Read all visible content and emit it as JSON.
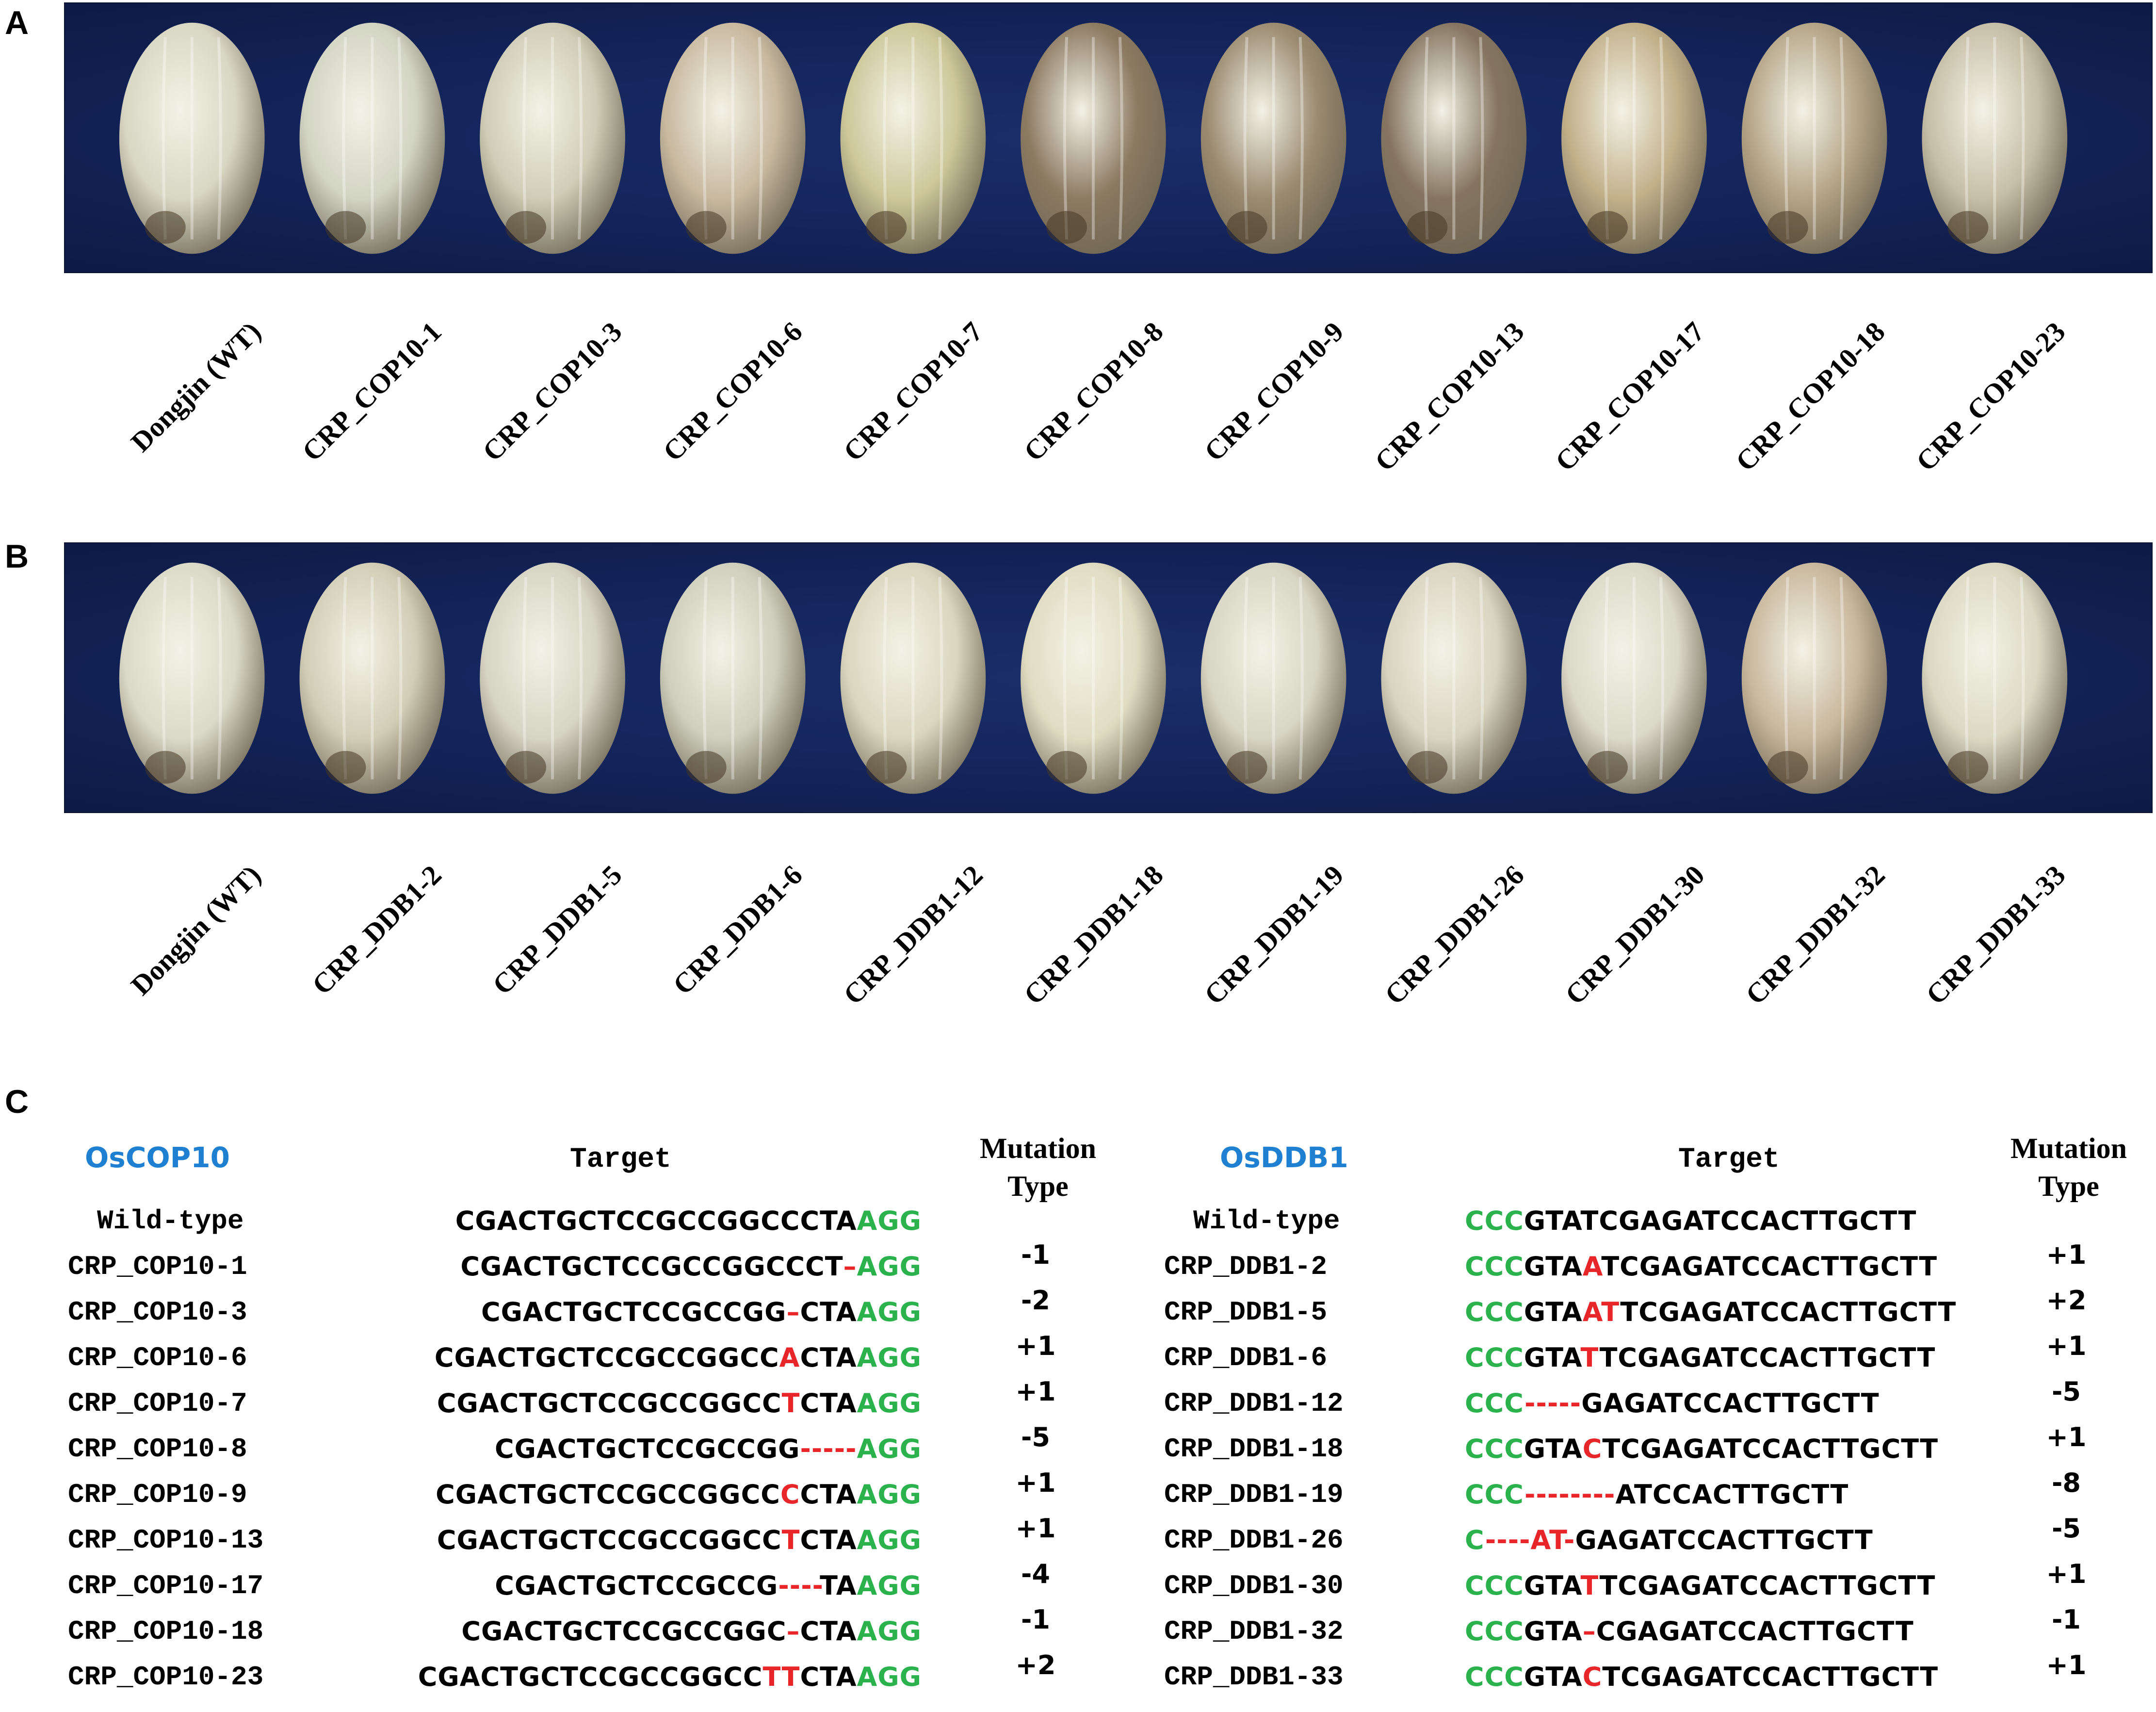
{
  "panels": {
    "a": "A",
    "b": "B",
    "c": "C"
  },
  "panel_a_labels": [
    "Dongjin (WT)",
    "CRP_COP10-1",
    "CRP_COP10-3",
    "CRP_COP10-6",
    "CRP_COP10-7",
    "CRP_COP10-8",
    "CRP_COP10-9",
    "CRP_COP10-13",
    "CRP_COP10-17",
    "CRP_COP10-18",
    "CRP_COP10-23"
  ],
  "panel_b_labels": [
    "Dongjin (WT)",
    "CRP_DDB1-2",
    "CRP_DDB1-5",
    "CRP_DDB1-6",
    "CRP_DDB1-12",
    "CRP_DDB1-18",
    "CRP_DDB1-19",
    "CRP_DDB1-26",
    "CRP_DDB1-30",
    "CRP_DDB1-32",
    "CRP_DDB1-33"
  ],
  "seed_colors": {
    "a": [
      "#d8d7c4",
      "#d2d4c4",
      "#cfcdb6",
      "#c8b9a0",
      "#cdc79a",
      "#8c7a62",
      "#9a8a70",
      "#857560",
      "#c2b08a",
      "#b4a486",
      "#c6bea6"
    ],
    "b": [
      "#dbdac8",
      "#d2cdb6",
      "#d6d4c4",
      "#cfcfbd",
      "#dad6be",
      "#e0dcc2",
      "#d7d5c3",
      "#d8d4c0",
      "#dbd9c9",
      "#c8b79c",
      "#dbd8c2"
    ]
  },
  "cop10": {
    "gene": "OsCOP10",
    "target_header": "Target",
    "mutation_header": [
      "Mutation",
      "Type"
    ],
    "rows": [
      {
        "name": "Wild-type",
        "seq": [
          [
            "CGACTGCTCCGCCGGCCCTA",
            "k"
          ],
          [
            "AGG",
            "g"
          ]
        ]
      },
      {
        "name": "CRP_COP10-1",
        "seq": [
          [
            "CGACTGCTCCGCCGGCCCT",
            "k"
          ],
          [
            "–",
            "r"
          ],
          [
            "AGG",
            "g"
          ]
        ]
      },
      {
        "name": "CRP_COP10-3",
        "seq": [
          [
            "CGACTGCTCCGCCGG",
            "k"
          ],
          [
            "–",
            "r"
          ],
          [
            "CTA",
            "k"
          ],
          [
            "AGG",
            "g"
          ]
        ]
      },
      {
        "name": "CRP_COP10-6",
        "seq": [
          [
            "CGACTGCTCCGCCGGCC",
            "k"
          ],
          [
            "A",
            "r"
          ],
          [
            "CTA",
            "k"
          ],
          [
            "AGG",
            "g"
          ]
        ]
      },
      {
        "name": "CRP_COP10-7",
        "seq": [
          [
            "CGACTGCTCCGCCGGCC",
            "k"
          ],
          [
            "T",
            "r"
          ],
          [
            "CTA",
            "k"
          ],
          [
            "AGG",
            "g"
          ]
        ]
      },
      {
        "name": "CRP_COP10-8",
        "seq": [
          [
            "CGACTGCTCCGCCGG",
            "k"
          ],
          [
            "-----",
            "r"
          ],
          [
            "AGG",
            "g"
          ]
        ]
      },
      {
        "name": "CRP_COP10-9",
        "seq": [
          [
            "CGACTGCTCCGCCGGCC",
            "k"
          ],
          [
            "C",
            "r"
          ],
          [
            "CTA",
            "k"
          ],
          [
            "AGG",
            "g"
          ]
        ]
      },
      {
        "name": "CRP_COP10-13",
        "seq": [
          [
            "CGACTGCTCCGCCGGCC",
            "k"
          ],
          [
            "T",
            "r"
          ],
          [
            "CTA",
            "k"
          ],
          [
            "AGG",
            "g"
          ]
        ]
      },
      {
        "name": "CRP_COP10-17",
        "seq": [
          [
            "CGACTGCTCCGCCG",
            "k"
          ],
          [
            "----",
            "r"
          ],
          [
            "TA",
            "k"
          ],
          [
            "AGG",
            "g"
          ]
        ]
      },
      {
        "name": "CRP_COP10-18",
        "seq": [
          [
            "CGACTGCTCCGCCGGC",
            "k"
          ],
          [
            "–",
            "r"
          ],
          [
            "CTA",
            "k"
          ],
          [
            "AGG",
            "g"
          ]
        ]
      },
      {
        "name": "CRP_COP10-23",
        "seq": [
          [
            "CGACTGCTCCGCCGGCC",
            "k"
          ],
          [
            "TT",
            "r"
          ],
          [
            "CTA",
            "k"
          ],
          [
            "AGG",
            "g"
          ]
        ]
      }
    ],
    "mutation_types": [
      "-1",
      "-2",
      "+1",
      "+1",
      "-5",
      "+1",
      "+1",
      "-4",
      "-1",
      "+2"
    ]
  },
  "ddb1": {
    "gene": "OsDDB1",
    "target_header": "Target",
    "mutation_header": [
      "Mutation",
      "Type"
    ],
    "rows": [
      {
        "name": "Wild-type",
        "seq": [
          [
            "CCC",
            "g"
          ],
          [
            "GTATCGAGATCCACTTGCTT",
            "k"
          ]
        ]
      },
      {
        "name": "CRP_DDB1-2",
        "seq": [
          [
            "CCC",
            "g"
          ],
          [
            "GTA",
            "k"
          ],
          [
            "A",
            "r"
          ],
          [
            "TCGAGATCCACTTGCTT",
            "k"
          ]
        ]
      },
      {
        "name": "CRP_DDB1-5",
        "seq": [
          [
            "CCC",
            "g"
          ],
          [
            "GTA",
            "k"
          ],
          [
            "AT",
            "r"
          ],
          [
            "TCGAGATCCACTTGCTT",
            "k"
          ]
        ]
      },
      {
        "name": "CRP_DDB1-6",
        "seq": [
          [
            "CCC",
            "g"
          ],
          [
            "GTA",
            "k"
          ],
          [
            "T",
            "r"
          ],
          [
            "TCGAGATCCACTTGCTT",
            "k"
          ]
        ]
      },
      {
        "name": "CRP_DDB1-12",
        "seq": [
          [
            "CCC",
            "g"
          ],
          [
            "-----",
            "r"
          ],
          [
            "GAGATCCACTTGCTT",
            "k"
          ]
        ]
      },
      {
        "name": "CRP_DDB1-18",
        "seq": [
          [
            "CCC",
            "g"
          ],
          [
            "GTA",
            "k"
          ],
          [
            "C",
            "r"
          ],
          [
            "TCGAGATCCACTTGCTT",
            "k"
          ]
        ]
      },
      {
        "name": "CRP_DDB1-19",
        "seq": [
          [
            "CCC",
            "g"
          ],
          [
            "--------",
            "r"
          ],
          [
            "ATCCACTTGCTT",
            "k"
          ]
        ]
      },
      {
        "name": "CRP_DDB1-26",
        "seq": [
          [
            "C",
            "g"
          ],
          [
            "----AT-",
            "r"
          ],
          [
            "GAGATCCACTTGCTT",
            "k"
          ]
        ]
      },
      {
        "name": "CRP_DDB1-30",
        "seq": [
          [
            "CCC",
            "g"
          ],
          [
            "GTA",
            "k"
          ],
          [
            "T",
            "r"
          ],
          [
            "TCGAGATCCACTTGCTT",
            "k"
          ]
        ]
      },
      {
        "name": "CRP_DDB1-32",
        "seq": [
          [
            "CCC",
            "g"
          ],
          [
            "GTA",
            "k"
          ],
          [
            "–",
            "r"
          ],
          [
            "CGAGATCCACTTGCTT",
            "k"
          ]
        ]
      },
      {
        "name": "CRP_DDB1-33",
        "seq": [
          [
            "CCC",
            "g"
          ],
          [
            "GTA",
            "k"
          ],
          [
            "C",
            "r"
          ],
          [
            "TCGAGATCCACTTGCTT",
            "k"
          ]
        ]
      }
    ],
    "mutation_types": [
      "+1",
      "+2",
      "+1",
      "-5",
      "+1",
      "-8",
      "-5",
      "+1",
      "-1",
      "+1"
    ]
  }
}
